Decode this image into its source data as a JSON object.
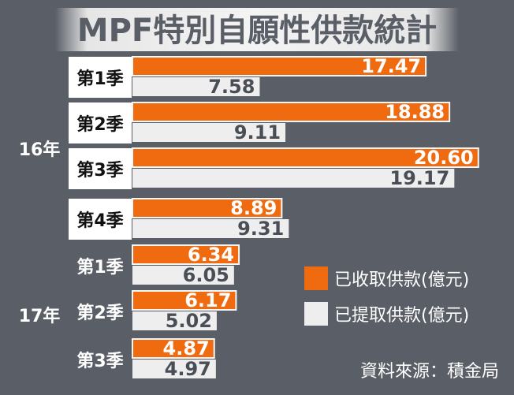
{
  "chart_data": {
    "type": "bar",
    "orientation": "horizontal",
    "title": "MPF特別自願性供款統計",
    "groups": [
      {
        "year": "16年",
        "quarters": [
          "第1季",
          "第2季",
          "第3季",
          "第4季"
        ]
      },
      {
        "year": "17年",
        "quarters": [
          "第1季",
          "第2季",
          "第3季"
        ]
      }
    ],
    "categories": [
      "16年 第1季",
      "16年 第2季",
      "16年 第3季",
      "16年 第4季",
      "17年 第1季",
      "17年 第2季",
      "17年 第3季"
    ],
    "series": [
      {
        "name": "已收取供款(億元)",
        "color": "#f06a10",
        "values": [
          17.47,
          18.88,
          20.6,
          8.89,
          6.34,
          6.17,
          4.87
        ]
      },
      {
        "name": "已提取供款(億元)",
        "color": "#eeeeee",
        "values": [
          7.58,
          9.11,
          19.17,
          9.31,
          6.05,
          5.02,
          4.97
        ]
      }
    ],
    "value_labels": {
      "received": [
        "17.47",
        "18.88",
        "20.60",
        "8.89",
        "6.34",
        "6.17",
        "4.87"
      ],
      "withdrawn": [
        "7.58",
        "9.11",
        "19.17",
        "9.31",
        "6.05",
        "5.02",
        "4.97"
      ]
    },
    "xlim": [
      0,
      22
    ],
    "grid": false,
    "legend_position": "right"
  },
  "source": "資料來源：積金局"
}
